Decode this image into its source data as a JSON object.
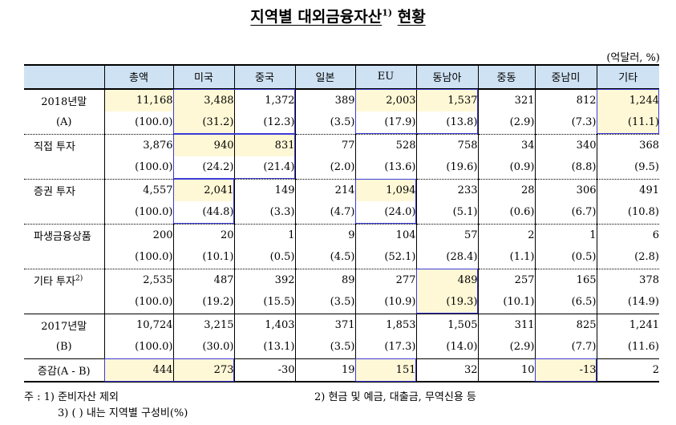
{
  "title": "지역별 대외금융자산",
  "title_sup": "1)",
  "title_tail": "현황",
  "unit": "(억달러, %)",
  "columns": [
    "",
    "총액",
    "미국",
    "중국",
    "일본",
    "EU",
    "동남아",
    "중동",
    "중남미",
    "기타"
  ],
  "rows": [
    {
      "label": "2018년말",
      "values": [
        "11,168",
        "3,488",
        "1,372",
        "389",
        "2,003",
        "1,537",
        "321",
        "812",
        "1,244"
      ]
    },
    {
      "label": "(A)",
      "values": [
        "(100.0)",
        "(31.2)",
        "(12.3)",
        "(3.5)",
        "(17.9)",
        "(13.8)",
        "(2.9)",
        "(7.3)",
        "(11.1)"
      ]
    },
    {
      "label": "직접 투자",
      "values": [
        "3,876",
        "940",
        "831",
        "77",
        "528",
        "758",
        "34",
        "340",
        "368"
      ]
    },
    {
      "label": "",
      "values": [
        "(100.0)",
        "(24.2)",
        "(21.4)",
        "(2.0)",
        "(13.6)",
        "(19.6)",
        "(0.9)",
        "(8.8)",
        "(9.5)"
      ]
    },
    {
      "label": "증권 투자",
      "values": [
        "4,557",
        "2,041",
        "149",
        "214",
        "1,094",
        "233",
        "28",
        "306",
        "491"
      ]
    },
    {
      "label": "",
      "values": [
        "(100.0)",
        "(44.8)",
        "(3.3)",
        "(4.7)",
        "(24.0)",
        "(5.1)",
        "(0.6)",
        "(6.7)",
        "(10.8)"
      ]
    },
    {
      "label": "파생금융상품",
      "values": [
        "200",
        "20",
        "1",
        "9",
        "104",
        "57",
        "2",
        "1",
        "6"
      ]
    },
    {
      "label": "",
      "values": [
        "(100.0)",
        "(10.1)",
        "(0.5)",
        "(4.5)",
        "(52.1)",
        "(28.4)",
        "(1.1)",
        "(0.5)",
        "(2.8)"
      ]
    },
    {
      "label": "기타 투자",
      "label_sup": "2)",
      "values": [
        "2,535",
        "487",
        "392",
        "89",
        "277",
        "489",
        "257",
        "165",
        "378"
      ]
    },
    {
      "label": "",
      "values": [
        "(100.0)",
        "(19.2)",
        "(15.5)",
        "(3.5)",
        "(10.9)",
        "(19.3)",
        "(10.1)",
        "(6.5)",
        "(14.9)"
      ]
    },
    {
      "label": "2017년말",
      "values": [
        "10,724",
        "3,215",
        "1,403",
        "371",
        "1,853",
        "1,505",
        "311",
        "825",
        "1,241"
      ]
    },
    {
      "label": "(B)",
      "values": [
        "(100.0)",
        "(30.0)",
        "(13.1)",
        "(3.5)",
        "(17.3)",
        "(14.0)",
        "(2.9)",
        "(7.7)",
        "(11.6)"
      ]
    },
    {
      "label": "증감(A - B)",
      "values": [
        "444",
        "273",
        "-30",
        "19",
        "151",
        "32",
        "10",
        "-13",
        "2"
      ]
    }
  ],
  "notes": {
    "n1": "주 : 1) 준비자산 제외",
    "n2": "2) 현금 및 예금, 대출금, 무역신용 등",
    "n3": "3) ( ) 내는 지역별 구성비(%)"
  },
  "colors": {
    "header_bg": "#cfe2f3",
    "highlight_bg": "#fff8d6",
    "box_border": "#3b3bd6"
  }
}
